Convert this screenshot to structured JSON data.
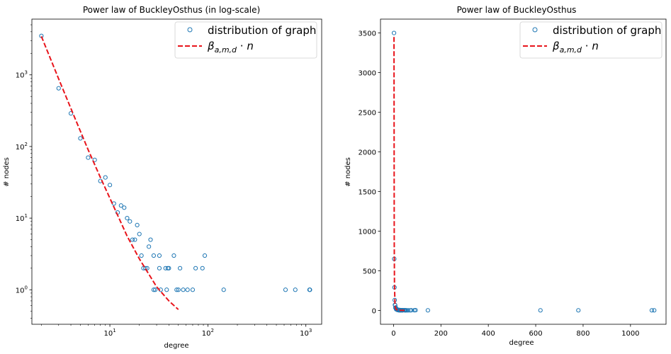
{
  "chart_data": [
    {
      "type": "scatter",
      "title": "Power law of BuckleyOsthus (in log-scale)",
      "xlabel": "degree",
      "ylabel": "# nodes",
      "xscale": "log",
      "yscale": "log",
      "xlim": [
        1.6,
        1450
      ],
      "ylim": [
        0.33,
        6000
      ],
      "xticks": [
        {
          "v": 10,
          "base": "10",
          "exp": "1"
        },
        {
          "v": 100,
          "base": "10",
          "exp": "2"
        },
        {
          "v": 1000,
          "base": "10",
          "exp": "3"
        }
      ],
      "yticks": [
        {
          "v": 1,
          "base": "10",
          "exp": "0"
        },
        {
          "v": 10,
          "base": "10",
          "exp": "1"
        },
        {
          "v": 100,
          "base": "10",
          "exp": "2"
        },
        {
          "v": 1000,
          "base": "10",
          "exp": "3"
        }
      ],
      "legend_position": "top-right",
      "series": [
        {
          "name": "distribution of graph",
          "kind": "scatter",
          "marker": "open-circle",
          "color": "#1f77b4",
          "points": [
            [
              2,
              3500
            ],
            [
              3,
              650
            ],
            [
              4,
              290
            ],
            [
              5,
              130
            ],
            [
              6,
              70
            ],
            [
              7,
              65
            ],
            [
              8,
              33
            ],
            [
              9,
              37
            ],
            [
              10,
              29
            ],
            [
              11,
              16
            ],
            [
              12,
              12
            ],
            [
              13,
              15
            ],
            [
              14,
              14
            ],
            [
              15,
              10
            ],
            [
              16,
              9
            ],
            [
              17,
              5
            ],
            [
              18,
              5
            ],
            [
              19,
              8
            ],
            [
              20,
              6
            ],
            [
              21,
              3
            ],
            [
              22,
              2
            ],
            [
              23,
              2
            ],
            [
              24,
              2
            ],
            [
              25,
              4
            ],
            [
              26,
              5
            ],
            [
              28,
              3
            ],
            [
              28,
              1
            ],
            [
              29,
              1
            ],
            [
              32,
              2
            ],
            [
              32,
              3
            ],
            [
              33,
              1
            ],
            [
              37,
              2
            ],
            [
              38,
              1
            ],
            [
              39,
              2
            ],
            [
              40,
              2
            ],
            [
              45,
              3
            ],
            [
              48,
              1
            ],
            [
              50,
              1
            ],
            [
              52,
              2
            ],
            [
              56,
              1
            ],
            [
              62,
              1
            ],
            [
              70,
              1
            ],
            [
              75,
              2
            ],
            [
              88,
              2
            ],
            [
              93,
              3
            ],
            [
              145,
              1
            ],
            [
              620,
              1
            ],
            [
              780,
              1
            ],
            [
              1090,
              1
            ],
            [
              1100,
              1
            ]
          ]
        },
        {
          "name": "β_{a,m,d} · n",
          "kind": "line",
          "linestyle": "dashed",
          "color": "#e8141b",
          "points": [
            [
              2,
              3450
            ],
            [
              3,
              880
            ],
            [
              4,
              340
            ],
            [
              6,
              90
            ],
            [
              8,
              37
            ],
            [
              10,
              19
            ],
            [
              15,
              5.6
            ],
            [
              20,
              2.7
            ],
            [
              30,
              1.1
            ],
            [
              40,
              0.7
            ],
            [
              50,
              0.53
            ]
          ]
        }
      ]
    },
    {
      "type": "scatter",
      "title": "Power law of BuckleyOsthus",
      "xlabel": "degree",
      "ylabel": "# nodes",
      "xscale": "linear",
      "yscale": "linear",
      "xlim": [
        -55,
        1150
      ],
      "ylim": [
        -175,
        3675
      ],
      "xticks": [
        "0",
        "200",
        "400",
        "600",
        "800",
        "1000"
      ],
      "yticks": [
        "0",
        "500",
        "1000",
        "1500",
        "2000",
        "2500",
        "3000",
        "3500"
      ],
      "legend_position": "top-right",
      "series": [
        {
          "name": "distribution of graph",
          "kind": "scatter",
          "marker": "open-circle",
          "color": "#1f77b4",
          "points": [
            [
              2,
              3500
            ],
            [
              3,
              650
            ],
            [
              4,
              290
            ],
            [
              5,
              130
            ],
            [
              6,
              70
            ],
            [
              7,
              65
            ],
            [
              8,
              33
            ],
            [
              9,
              37
            ],
            [
              10,
              29
            ],
            [
              11,
              16
            ],
            [
              12,
              12
            ],
            [
              13,
              15
            ],
            [
              14,
              14
            ],
            [
              15,
              10
            ],
            [
              16,
              9
            ],
            [
              17,
              5
            ],
            [
              18,
              5
            ],
            [
              19,
              8
            ],
            [
              20,
              6
            ],
            [
              21,
              3
            ],
            [
              22,
              2
            ],
            [
              23,
              2
            ],
            [
              24,
              2
            ],
            [
              25,
              4
            ],
            [
              26,
              5
            ],
            [
              28,
              3
            ],
            [
              28,
              1
            ],
            [
              29,
              1
            ],
            [
              32,
              2
            ],
            [
              32,
              3
            ],
            [
              33,
              1
            ],
            [
              37,
              2
            ],
            [
              38,
              1
            ],
            [
              39,
              2
            ],
            [
              40,
              2
            ],
            [
              45,
              3
            ],
            [
              48,
              1
            ],
            [
              50,
              1
            ],
            [
              52,
              2
            ],
            [
              56,
              1
            ],
            [
              62,
              1
            ],
            [
              70,
              1
            ],
            [
              75,
              2
            ],
            [
              88,
              2
            ],
            [
              93,
              3
            ],
            [
              145,
              1
            ],
            [
              620,
              1
            ],
            [
              780,
              1
            ],
            [
              1090,
              1
            ],
            [
              1100,
              1
            ]
          ]
        },
        {
          "name": "β_{a,m,d} · n",
          "kind": "line",
          "linestyle": "dashed",
          "color": "#e8141b",
          "points": [
            [
              2,
              3450
            ],
            [
              3,
              880
            ],
            [
              4,
              340
            ],
            [
              6,
              90
            ],
            [
              8,
              37
            ],
            [
              10,
              19
            ],
            [
              15,
              5.6
            ],
            [
              20,
              2.7
            ],
            [
              30,
              1.1
            ],
            [
              40,
              0.7
            ],
            [
              50,
              0.53
            ]
          ]
        }
      ]
    }
  ]
}
